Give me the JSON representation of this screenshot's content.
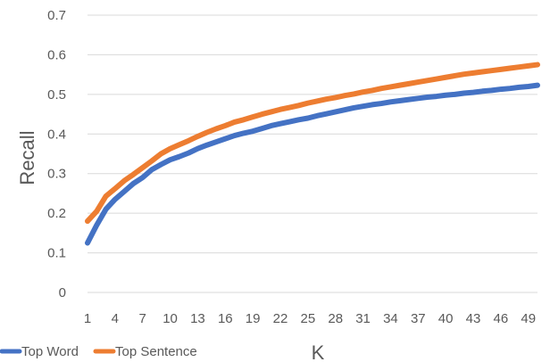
{
  "chart_data": {
    "type": "line",
    "xlabel": "K",
    "ylabel": "Recall",
    "ylim": [
      0,
      0.7
    ],
    "yticks": [
      "0",
      "0.1",
      "0.2",
      "0.3",
      "0.4",
      "0.5",
      "0.6",
      "0.7"
    ],
    "xlim": [
      1,
      50
    ],
    "x": [
      1,
      2,
      3,
      4,
      5,
      6,
      7,
      8,
      9,
      10,
      11,
      12,
      13,
      14,
      15,
      16,
      17,
      18,
      19,
      20,
      21,
      22,
      23,
      24,
      25,
      26,
      27,
      28,
      29,
      30,
      31,
      32,
      33,
      34,
      35,
      36,
      37,
      38,
      39,
      40,
      41,
      42,
      43,
      44,
      45,
      46,
      47,
      48,
      49,
      50
    ],
    "xtick_labels": [
      "1",
      "4",
      "7",
      "10",
      "13",
      "16",
      "19",
      "22",
      "25",
      "28",
      "31",
      "34",
      "37",
      "40",
      "43",
      "46",
      "49"
    ],
    "grid": "horizontal",
    "legend_position": "bottom-left",
    "series": [
      {
        "name": "Top Word",
        "color": "#4472C4",
        "values": [
          0.125,
          0.17,
          0.21,
          0.235,
          0.255,
          0.275,
          0.29,
          0.31,
          0.323,
          0.335,
          0.343,
          0.352,
          0.363,
          0.372,
          0.38,
          0.388,
          0.396,
          0.402,
          0.407,
          0.414,
          0.421,
          0.426,
          0.431,
          0.436,
          0.44,
          0.446,
          0.451,
          0.456,
          0.461,
          0.466,
          0.47,
          0.474,
          0.477,
          0.481,
          0.484,
          0.487,
          0.49,
          0.493,
          0.495,
          0.498,
          0.5,
          0.503,
          0.505,
          0.508,
          0.51,
          0.513,
          0.515,
          0.518,
          0.52,
          0.523
        ]
      },
      {
        "name": "Top Sentence",
        "color": "#ED7D31",
        "values": [
          0.18,
          0.205,
          0.243,
          0.262,
          0.282,
          0.298,
          0.315,
          0.332,
          0.35,
          0.363,
          0.373,
          0.383,
          0.394,
          0.404,
          0.413,
          0.421,
          0.43,
          0.436,
          0.443,
          0.45,
          0.456,
          0.462,
          0.467,
          0.472,
          0.478,
          0.483,
          0.488,
          0.492,
          0.497,
          0.501,
          0.506,
          0.51,
          0.515,
          0.519,
          0.523,
          0.527,
          0.531,
          0.535,
          0.539,
          0.543,
          0.547,
          0.551,
          0.554,
          0.557,
          0.56,
          0.563,
          0.566,
          0.569,
          0.572,
          0.575
        ]
      }
    ]
  }
}
